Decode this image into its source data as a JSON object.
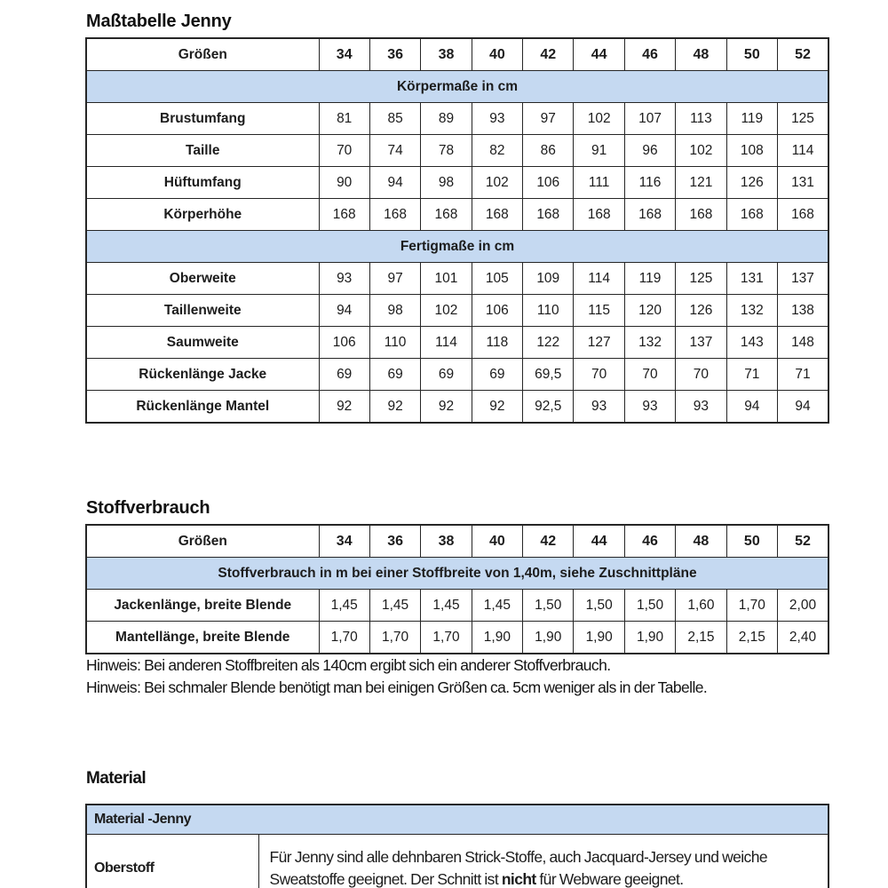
{
  "page": {
    "accent_blue": "#c5d9f1",
    "border_color": "#262626"
  },
  "masstabelle": {
    "title": "Maßtabelle Jenny",
    "label_header": "Größen",
    "sizes": [
      "34",
      "36",
      "38",
      "40",
      "42",
      "44",
      "46",
      "48",
      "50",
      "52"
    ],
    "sections": [
      {
        "band": "Körpermaße in cm",
        "rows": [
          {
            "label": "Brustumfang",
            "values": [
              "81",
              "85",
              "89",
              "93",
              "97",
              "102",
              "107",
              "113",
              "119",
              "125"
            ]
          },
          {
            "label": "Taille",
            "values": [
              "70",
              "74",
              "78",
              "82",
              "86",
              "91",
              "96",
              "102",
              "108",
              "114"
            ]
          },
          {
            "label": "Hüftumfang",
            "values": [
              "90",
              "94",
              "98",
              "102",
              "106",
              "111",
              "116",
              "121",
              "126",
              "131"
            ]
          },
          {
            "label": "Körperhöhe",
            "values": [
              "168",
              "168",
              "168",
              "168",
              "168",
              "168",
              "168",
              "168",
              "168",
              "168"
            ]
          }
        ]
      },
      {
        "band": "Fertigmaße in cm",
        "rows": [
          {
            "label": "Oberweite",
            "values": [
              "93",
              "97",
              "101",
              "105",
              "109",
              "114",
              "119",
              "125",
              "131",
              "137"
            ]
          },
          {
            "label": "Taillenweite",
            "values": [
              "94",
              "98",
              "102",
              "106",
              "110",
              "115",
              "120",
              "126",
              "132",
              "138"
            ]
          },
          {
            "label": "Saumweite",
            "values": [
              "106",
              "110",
              "114",
              "118",
              "122",
              "127",
              "132",
              "137",
              "143",
              "148"
            ]
          },
          {
            "label": "Rückenlänge Jacke",
            "values": [
              "69",
              "69",
              "69",
              "69",
              "69,5",
              "70",
              "70",
              "70",
              "71",
              "71"
            ]
          },
          {
            "label": "Rückenlänge Mantel",
            "values": [
              "92",
              "92",
              "92",
              "92",
              "92,5",
              "93",
              "93",
              "93",
              "94",
              "94"
            ]
          }
        ]
      }
    ]
  },
  "stoffverbrauch": {
    "title": "Stoffverbrauch",
    "label_header": "Größen",
    "sizes": [
      "34",
      "36",
      "38",
      "40",
      "42",
      "44",
      "46",
      "48",
      "50",
      "52"
    ],
    "band": "Stoffverbrauch in m bei einer Stoffbreite von 1,40m, siehe Zuschnittpläne",
    "rows": [
      {
        "label": "Jackenlänge, breite Blende",
        "values": [
          "1,45",
          "1,45",
          "1,45",
          "1,45",
          "1,50",
          "1,50",
          "1,50",
          "1,60",
          "1,70",
          "2,00"
        ]
      },
      {
        "label": "Mantellänge, breite Blende",
        "values": [
          "1,70",
          "1,70",
          "1,70",
          "1,90",
          "1,90",
          "1,90",
          "1,90",
          "2,15",
          "2,15",
          "2,40"
        ]
      }
    ],
    "notes": [
      "Hinweis: Bei anderen Stoffbreiten als 140cm ergibt sich ein anderer Stoffverbrauch.",
      "Hinweis: Bei schmaler Blende benötigt man bei einigen Größen ca. 5cm weniger als in der Tabelle."
    ]
  },
  "material": {
    "title": "Material",
    "band": "Material -Jenny",
    "rows": [
      {
        "label": "Oberstoff",
        "text_before": "Für Jenny sind alle dehnbaren Strick-Stoffe, auch Jacquard-Jersey und weiche Sweatstoffe geeignet. Der Schnitt ist ",
        "bold": "nicht",
        "text_after": " für Webware geeignet."
      }
    ]
  }
}
